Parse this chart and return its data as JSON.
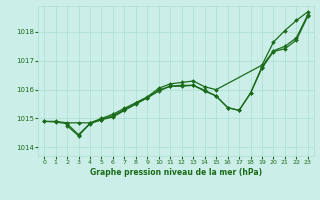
{
  "title": "Graphe pression niveau de la mer (hPa)",
  "bg_color": "#cceee8",
  "grid_color": "#aaddcc",
  "line_color": "#1a6b1a",
  "xlim": [
    -0.5,
    23.5
  ],
  "ylim": [
    1013.7,
    1018.9
  ],
  "xticks": [
    0,
    1,
    2,
    3,
    4,
    5,
    6,
    7,
    8,
    9,
    10,
    11,
    12,
    13,
    14,
    15,
    16,
    17,
    18,
    19,
    20,
    21,
    22,
    23
  ],
  "yticks": [
    1014,
    1015,
    1016,
    1017,
    1018
  ],
  "line1_x": [
    0,
    1,
    2,
    3,
    4,
    5,
    6,
    7,
    8,
    9,
    10,
    11,
    12,
    13,
    14,
    15,
    19,
    20,
    21,
    22,
    23
  ],
  "line1_y": [
    1014.9,
    1014.9,
    1014.85,
    1014.85,
    1014.85,
    1015.0,
    1015.15,
    1015.35,
    1015.55,
    1015.75,
    1016.05,
    1016.2,
    1016.25,
    1016.3,
    1016.1,
    1016.0,
    1016.85,
    1017.65,
    1018.05,
    1018.4,
    1018.7
  ],
  "line2_x": [
    0,
    1,
    2,
    3,
    4,
    5,
    6,
    7,
    8,
    9,
    10,
    11,
    12,
    13,
    14,
    15,
    16,
    17,
    18,
    19,
    20,
    21,
    22,
    23
  ],
  "line2_y": [
    1014.9,
    1014.88,
    1014.82,
    1014.44,
    1014.83,
    1014.96,
    1015.05,
    1015.28,
    1015.5,
    1015.72,
    1015.95,
    1016.12,
    1016.15,
    1016.15,
    1015.95,
    1015.78,
    1015.38,
    1015.28,
    1015.88,
    1016.8,
    1017.35,
    1017.5,
    1017.8,
    1018.6
  ],
  "line3_x": [
    2,
    3,
    4,
    5,
    6,
    7,
    8,
    9,
    10,
    11,
    12,
    13,
    14,
    15,
    16,
    17,
    18,
    19,
    20,
    21,
    22,
    23
  ],
  "line3_y": [
    1014.75,
    1014.4,
    1014.82,
    1014.96,
    1015.1,
    1015.3,
    1015.52,
    1015.72,
    1015.98,
    1016.12,
    1016.12,
    1016.15,
    1015.98,
    1015.78,
    1015.38,
    1015.28,
    1015.88,
    1016.75,
    1017.32,
    1017.42,
    1017.72,
    1018.55
  ]
}
